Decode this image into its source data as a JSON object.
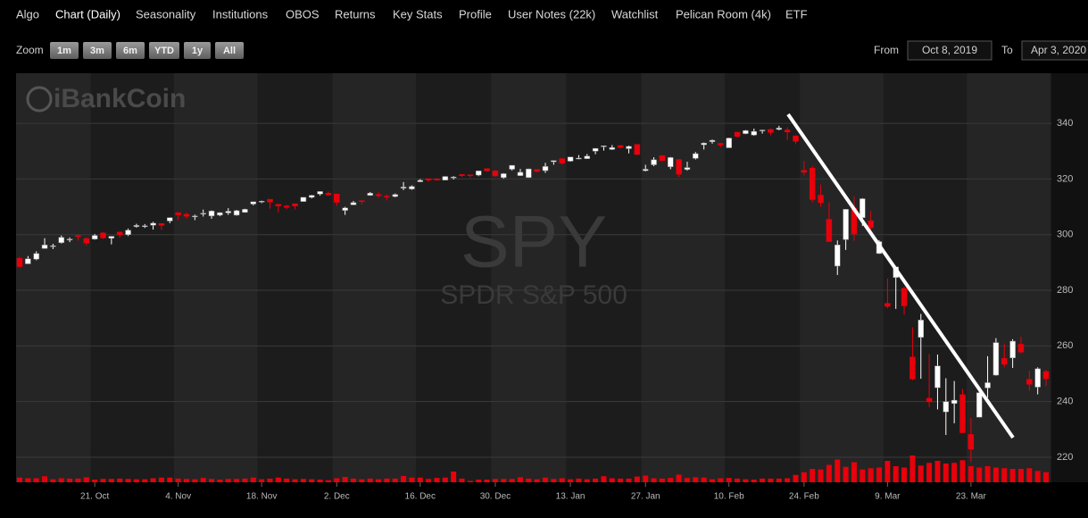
{
  "nav": [
    "Algo",
    "Chart (Daily)",
    "Seasonality",
    "Institutions",
    "OBOS",
    "Returns",
    "Key Stats",
    "Profile",
    "User Notes (22k)",
    "Watchlist",
    "Pelican Room (4k)",
    "ETF"
  ],
  "zoom": {
    "label": "Zoom",
    "buttons": [
      "1m",
      "3m",
      "6m",
      "YTD",
      "1y",
      "All"
    ]
  },
  "range": {
    "from_label": "From",
    "from": "Oct 8, 2019",
    "to_label": "To",
    "to": "Apr 3, 2020"
  },
  "chart_data": {
    "type": "candlestick",
    "logo": "iBankCoin",
    "title": "SPY",
    "subtitle": "SPDR S&P 500",
    "up_color": "#ffffff",
    "down_color": "#e8000b",
    "volume_color": "#e8000b",
    "grid": true,
    "x": [
      "8. Oct",
      "9. Oct",
      "10. Oct",
      "11. Oct",
      "14. Oct",
      "15. Oct",
      "16. Oct",
      "17. Oct",
      "18. Oct",
      "21. Oct",
      "22. Oct",
      "23. Oct",
      "24. Oct",
      "25. Oct",
      "28. Oct",
      "29. Oct",
      "30. Oct",
      "31. Oct",
      "1. Nov",
      "4. Nov",
      "5. Nov",
      "6. Nov",
      "7. Nov",
      "8. Nov",
      "11. Nov",
      "12. Nov",
      "13. Nov",
      "14. Nov",
      "15. Nov",
      "18. Nov",
      "19. Nov",
      "20. Nov",
      "21. Nov",
      "22. Nov",
      "25. Nov",
      "26. Nov",
      "27. Nov",
      "29. Nov",
      "2. Dec",
      "3. Dec",
      "4. Dec",
      "5. Dec",
      "6. Dec",
      "9. Dec",
      "10. Dec",
      "11. Dec",
      "12. Dec",
      "13. Dec",
      "16. Dec",
      "17. Dec",
      "18. Dec",
      "19. Dec",
      "20. Dec",
      "23. Dec",
      "24. Dec",
      "26. Dec",
      "27. Dec",
      "30. Dec",
      "31. Dec",
      "2. Jan",
      "3. Jan",
      "6. Jan",
      "7. Jan",
      "8. Jan",
      "9. Jan",
      "10. Jan",
      "13. Jan",
      "14. Jan",
      "15. Jan",
      "16. Jan",
      "17. Jan",
      "21. Jan",
      "22. Jan",
      "23. Jan",
      "24. Jan",
      "27. Jan",
      "28. Jan",
      "29. Jan",
      "30. Jan",
      "31. Jan",
      "3. Feb",
      "4. Feb",
      "5. Feb",
      "6. Feb",
      "7. Feb",
      "10. Feb",
      "11. Feb",
      "12. Feb",
      "13. Feb",
      "14. Feb",
      "18. Feb",
      "19. Feb",
      "20. Feb",
      "21. Feb",
      "24. Feb",
      "25. Feb",
      "26. Feb",
      "27. Feb",
      "28. Feb",
      "2. Mar",
      "3. Mar",
      "4. Mar",
      "5. Mar",
      "6. Mar",
      "9. Mar",
      "10. Mar",
      "11. Mar",
      "12. Mar",
      "13. Mar",
      "16. Mar",
      "17. Mar",
      "18. Mar",
      "19. Mar",
      "20. Mar",
      "23. Mar",
      "24. Mar",
      "25. Mar",
      "26. Mar",
      "27. Mar",
      "30. Mar",
      "31. Mar",
      "1. Apr",
      "2. Apr",
      "3. Apr"
    ],
    "open": [
      291.5,
      289.5,
      291.2,
      295.0,
      295.9,
      297.1,
      298.4,
      299.7,
      298.6,
      298.4,
      300.6,
      298.7,
      300.9,
      300.0,
      302.9,
      302.9,
      303.4,
      304.0,
      304.9,
      307.9,
      307.3,
      306.4,
      307.6,
      306.7,
      307.0,
      307.8,
      307.0,
      308.0,
      311.0,
      311.7,
      312.7,
      310.9,
      310.3,
      311.1,
      311.9,
      313.4,
      314.6,
      314.9,
      314.6,
      308.7,
      310.7,
      312.2,
      314.1,
      314.4,
      313.8,
      313.7,
      316.7,
      316.4,
      319.0,
      320.1,
      320.0,
      319.6,
      320.5,
      321.6,
      321.5,
      321.4,
      323.7,
      322.9,
      320.5,
      323.5,
      321.2,
      320.5,
      323.4,
      323.0,
      326.2,
      327.3,
      326.4,
      327.5,
      327.3,
      330.0,
      331.7,
      330.6,
      332.0,
      330.9,
      332.4,
      323.0,
      325.1,
      328.4,
      324.4,
      327.0,
      323.4,
      327.4,
      332.3,
      333.4,
      332.8,
      331.2,
      336.8,
      336.3,
      335.8,
      337.5,
      337.8,
      337.8,
      337.6,
      335.5,
      323.1,
      323.9,
      314.2,
      305.5,
      288.7,
      298.2,
      309.5,
      306.1,
      305.0,
      293.2,
      275.3,
      284.6,
      280.7,
      256.0,
      263.1,
      241.2,
      245.0,
      236.3,
      239.3,
      242.5,
      228.2,
      234.4,
      244.9,
      249.5,
      255.5,
      255.7,
      260.6,
      248.0,
      245.2,
      250.8
    ],
    "high": [
      292.0,
      292.3,
      294.0,
      298.7,
      296.7,
      299.7,
      299.0,
      300.0,
      299.0,
      300.2,
      300.9,
      299.4,
      301.1,
      302.2,
      303.9,
      303.8,
      304.6,
      304.1,
      306.2,
      307.4,
      307.9,
      307.2,
      309.0,
      308.7,
      308.0,
      309.5,
      308.9,
      309.3,
      311.8,
      312.2,
      312.7,
      311.0,
      310.7,
      311.1,
      313.4,
      314.3,
      315.5,
      315.5,
      314.7,
      310.0,
      312.1,
      312.3,
      315.3,
      315.2,
      314.4,
      314.8,
      318.9,
      317.7,
      320.0,
      320.2,
      320.3,
      321.0,
      321.0,
      321.7,
      321.5,
      322.9,
      323.8,
      323.1,
      322.1,
      324.9,
      323.6,
      323.7,
      323.5,
      325.8,
      326.7,
      327.5,
      327.9,
      328.6,
      329.0,
      331.0,
      332.0,
      332.2,
      332.2,
      332.0,
      332.5,
      325.1,
      327.8,
      328.6,
      327.9,
      327.2,
      326.2,
      329.7,
      333.1,
      334.2,
      333.0,
      334.8,
      337.0,
      337.6,
      338.1,
      337.7,
      338.1,
      339.1,
      338.6,
      335.6,
      326.4,
      324.6,
      318.0,
      311.6,
      297.9,
      309.2,
      313.8,
      313.1,
      308.5,
      298.0,
      284.2,
      288.5,
      281.2,
      266.7,
      271.5,
      257.0,
      256.9,
      248.4,
      247.4,
      244.5,
      234.1,
      244.1,
      256.3,
      262.8,
      260.8,
      262.4,
      263.3,
      251.0,
      252.3,
      251.4
    ],
    "low": [
      288.1,
      289.5,
      290.8,
      294.9,
      294.8,
      296.8,
      297.3,
      297.9,
      296.0,
      298.2,
      298.5,
      296.5,
      298.9,
      299.5,
      302.5,
      302.4,
      301.8,
      301.7,
      304.1,
      305.2,
      305.7,
      305.2,
      306.5,
      305.7,
      306.6,
      307.1,
      306.8,
      307.9,
      310.5,
      311.3,
      309.3,
      308.0,
      309.1,
      309.0,
      311.9,
      313.0,
      314.0,
      313.9,
      310.3,
      307.1,
      310.6,
      310.9,
      314.0,
      313.3,
      312.3,
      313.4,
      316.0,
      316.1,
      318.9,
      319.0,
      319.5,
      319.5,
      319.8,
      320.7,
      320.5,
      321.0,
      322.6,
      320.8,
      320.1,
      323.0,
      321.1,
      320.4,
      322.4,
      322.2,
      325.1,
      325.1,
      326.2,
      327.1,
      327.2,
      328.9,
      330.2,
      330.4,
      331.0,
      329.2,
      328.5,
      322.7,
      324.6,
      326.4,
      323.5,
      320.7,
      323.0,
      327.0,
      330.6,
      332.7,
      331.3,
      331.2,
      334.8,
      336.1,
      335.5,
      336.3,
      335.7,
      337.5,
      333.9,
      332.5,
      321.3,
      311.6,
      310.0,
      297.5,
      285.5,
      294.5,
      297.8,
      303.1,
      300.0,
      293.1,
      273.5,
      273.3,
      271.2,
      247.7,
      248.2,
      238.0,
      237.2,
      228.0,
      232.2,
      228.8,
      218.3,
      234.3,
      241.4,
      249.3,
      252.3,
      252.1,
      257.3,
      243.9,
      242.6,
      245.6
    ],
    "close": [
      288.5,
      291.3,
      293.2,
      296.3,
      296.0,
      299.0,
      298.4,
      299.3,
      297.0,
      299.7,
      298.8,
      299.4,
      299.9,
      301.6,
      303.3,
      303.2,
      304.1,
      303.3,
      306.1,
      307.1,
      306.6,
      306.7,
      307.7,
      308.5,
      307.9,
      308.4,
      308.6,
      309.1,
      311.8,
      312.0,
      311.7,
      310.3,
      309.8,
      310.3,
      313.4,
      314.1,
      315.5,
      314.3,
      311.6,
      309.6,
      311.5,
      312.0,
      314.9,
      314.0,
      313.5,
      314.4,
      317.1,
      317.3,
      319.5,
      319.6,
      319.6,
      320.9,
      320.7,
      321.2,
      321.2,
      322.9,
      322.9,
      321.1,
      321.9,
      324.9,
      322.4,
      323.6,
      322.7,
      324.5,
      326.6,
      325.7,
      327.9,
      327.5,
      328.2,
      331.0,
      331.9,
      331.3,
      331.3,
      331.7,
      328.8,
      323.5,
      326.9,
      326.6,
      327.7,
      321.7,
      324.1,
      329.1,
      332.9,
      333.9,
      332.2,
      334.7,
      335.3,
      337.4,
      337.1,
      337.6,
      336.7,
      338.3,
      336.9,
      333.5,
      322.4,
      312.6,
      311.5,
      297.5,
      296.3,
      309.1,
      300.2,
      312.9,
      302.5,
      297.5,
      274.2,
      288.4,
      274.4,
      248.1,
      269.3,
      239.9,
      252.8,
      240.0,
      240.5,
      228.8,
      222.9,
      243.2,
      246.8,
      261.2,
      253.4,
      261.7,
      257.8,
      246.2,
      251.8,
      248.2
    ],
    "volume": [
      70,
      60,
      60,
      90,
      45,
      60,
      55,
      55,
      75,
      40,
      50,
      50,
      55,
      50,
      45,
      45,
      60,
      70,
      70,
      55,
      50,
      45,
      65,
      50,
      40,
      50,
      50,
      55,
      70,
      45,
      55,
      70,
      55,
      45,
      50,
      45,
      40,
      30,
      60,
      80,
      55,
      45,
      55,
      45,
      55,
      55,
      95,
      70,
      70,
      50,
      65,
      70,
      160,
      55,
      20,
      40,
      40,
      50,
      50,
      50,
      75,
      55,
      45,
      70,
      50,
      60,
      45,
      55,
      45,
      55,
      90,
      60,
      55,
      55,
      85,
      100,
      60,
      55,
      65,
      115,
      65,
      75,
      70,
      45,
      60,
      65,
      55,
      45,
      40,
      55,
      55,
      55,
      60,
      110,
      150,
      200,
      190,
      260,
      340,
      230,
      300,
      190,
      210,
      220,
      320,
      240,
      220,
      400,
      250,
      290,
      320,
      280,
      290,
      330,
      240,
      220,
      240,
      220,
      210,
      200,
      200,
      210,
      170,
      150
    ],
    "xticks": [
      "21. Oct",
      "4. Nov",
      "18. Nov",
      "2. Dec",
      "16. Dec",
      "30. Dec",
      "13. Jan",
      "27. Jan",
      "10. Feb",
      "24. Feb",
      "9. Mar",
      "23. Mar"
    ],
    "ylim": [
      211,
      358
    ],
    "yticks": [
      220,
      240,
      260,
      280,
      300,
      320,
      340
    ]
  }
}
